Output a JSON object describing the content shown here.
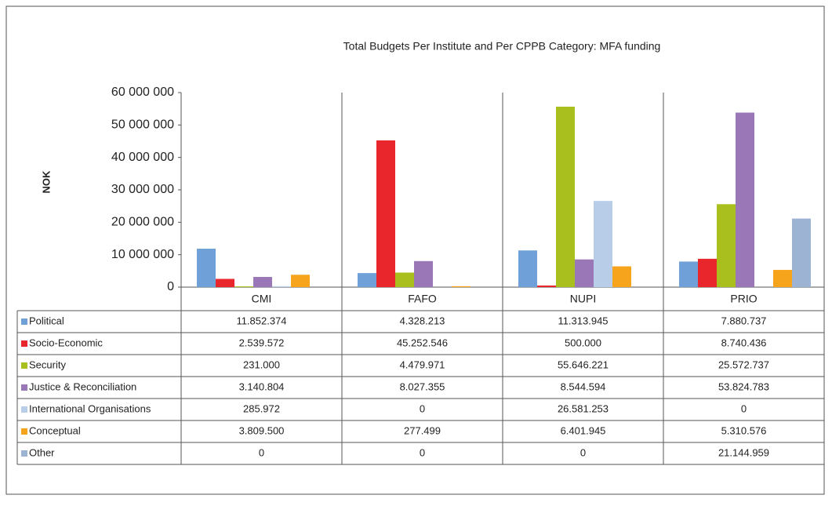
{
  "chart_data": {
    "type": "bar",
    "title": "Total Budgets Per Institute and Per CPPB Category: MFA funding",
    "y_label": "NOK",
    "categories": [
      "CMI",
      "FAFO",
      "NUPI",
      "PRIO"
    ],
    "ylim": [
      0,
      60000000
    ],
    "yticks": [
      0,
      {
        "value": 10000000,
        "label": "10 000 000"
      },
      {
        "value": 20000000,
        "label": "20 000 000"
      },
      {
        "value": 30000000,
        "label": "30 000 000"
      },
      {
        "value": 40000000,
        "label": "40 000 000"
      },
      {
        "value": 50000000,
        "label": "50 000 000"
      },
      {
        "value": 60000000,
        "label": "60 000 000"
      }
    ],
    "series": [
      {
        "name": "Political",
        "color": "#6fa1d8",
        "values": [
          11852374,
          4328213,
          11313945,
          7880737
        ],
        "value_labels": [
          "11.852.374",
          "4.328.213",
          "11.313.945",
          "7.880.737"
        ]
      },
      {
        "name": "Socio-Economic",
        "color": "#e8262b",
        "values": [
          2539572,
          45252546,
          500000,
          8740436
        ],
        "value_labels": [
          "2.539.572",
          "45.252.546",
          "500.000",
          "8.740.436"
        ]
      },
      {
        "name": "Security",
        "color": "#a8bf1e",
        "values": [
          231000,
          4479971,
          55646221,
          25572737
        ],
        "value_labels": [
          "231.000",
          "4.479.971",
          "55.646.221",
          "25.572.737"
        ]
      },
      {
        "name": "Justice & Reconciliation",
        "color": "#9a78b8",
        "values": [
          3140804,
          8027355,
          8544594,
          53824783
        ],
        "value_labels": [
          "3.140.804",
          "8.027.355",
          "8.544.594",
          "53.824.783"
        ]
      },
      {
        "name": "International Organisations",
        "color": "#b7cde8",
        "values": [
          285972,
          0,
          26581253,
          0
        ],
        "value_labels": [
          "285.972",
          "0",
          "26.581.253",
          "0"
        ]
      },
      {
        "name": "Conceptual",
        "color": "#f5a41c",
        "values": [
          3809500,
          277499,
          6401945,
          5310576
        ],
        "value_labels": [
          "3.809.500",
          "277.499",
          "6.401.945",
          "5.310.576"
        ]
      },
      {
        "name": "Other",
        "color": "#9db3d4",
        "values": [
          0,
          0,
          0,
          21144959
        ],
        "value_labels": [
          "0",
          "0",
          "0",
          "21.144.959"
        ]
      }
    ]
  }
}
